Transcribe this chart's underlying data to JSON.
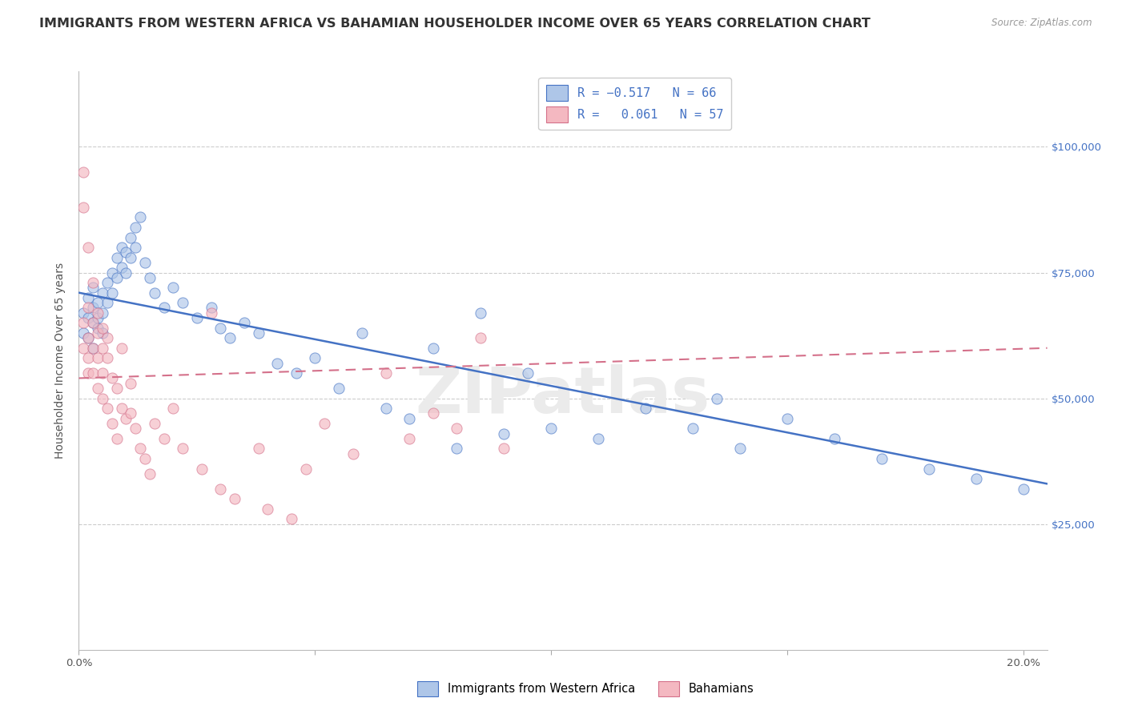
{
  "title": "IMMIGRANTS FROM WESTERN AFRICA VS BAHAMIAN HOUSEHOLDER INCOME OVER 65 YEARS CORRELATION CHART",
  "source": "Source: ZipAtlas.com",
  "ylabel": "Householder Income Over 65 years",
  "right_ytick_labels": [
    "$25,000",
    "$50,000",
    "$75,000",
    "$100,000"
  ],
  "right_ytick_values": [
    25000,
    50000,
    75000,
    100000
  ],
  "ylim": [
    0,
    115000
  ],
  "xlim": [
    0.0,
    0.205
  ],
  "legend_label1": "Immigrants from Western Africa",
  "legend_label2": "Bahamians",
  "blue_scatter_x": [
    0.001,
    0.001,
    0.002,
    0.002,
    0.002,
    0.003,
    0.003,
    0.003,
    0.003,
    0.004,
    0.004,
    0.004,
    0.005,
    0.005,
    0.005,
    0.006,
    0.006,
    0.007,
    0.007,
    0.008,
    0.008,
    0.009,
    0.009,
    0.01,
    0.01,
    0.011,
    0.011,
    0.012,
    0.012,
    0.013,
    0.014,
    0.015,
    0.016,
    0.018,
    0.02,
    0.022,
    0.025,
    0.028,
    0.03,
    0.032,
    0.035,
    0.038,
    0.042,
    0.046,
    0.05,
    0.055,
    0.06,
    0.065,
    0.07,
    0.075,
    0.08,
    0.09,
    0.095,
    0.1,
    0.11,
    0.12,
    0.13,
    0.14,
    0.15,
    0.16,
    0.17,
    0.18,
    0.19,
    0.2,
    0.135,
    0.085
  ],
  "blue_scatter_y": [
    67000,
    63000,
    70000,
    66000,
    62000,
    68000,
    65000,
    72000,
    60000,
    66000,
    64000,
    69000,
    71000,
    67000,
    63000,
    73000,
    69000,
    75000,
    71000,
    78000,
    74000,
    80000,
    76000,
    79000,
    75000,
    82000,
    78000,
    84000,
    80000,
    86000,
    77000,
    74000,
    71000,
    68000,
    72000,
    69000,
    66000,
    68000,
    64000,
    62000,
    65000,
    63000,
    57000,
    55000,
    58000,
    52000,
    63000,
    48000,
    46000,
    60000,
    40000,
    43000,
    55000,
    44000,
    42000,
    48000,
    44000,
    40000,
    46000,
    42000,
    38000,
    36000,
    34000,
    32000,
    50000,
    67000
  ],
  "pink_scatter_x": [
    0.001,
    0.001,
    0.001,
    0.001,
    0.002,
    0.002,
    0.002,
    0.002,
    0.002,
    0.003,
    0.003,
    0.003,
    0.003,
    0.004,
    0.004,
    0.004,
    0.004,
    0.005,
    0.005,
    0.005,
    0.005,
    0.006,
    0.006,
    0.006,
    0.007,
    0.007,
    0.008,
    0.008,
    0.009,
    0.009,
    0.01,
    0.011,
    0.011,
    0.012,
    0.013,
    0.014,
    0.015,
    0.016,
    0.018,
    0.02,
    0.022,
    0.026,
    0.028,
    0.03,
    0.033,
    0.038,
    0.04,
    0.045,
    0.048,
    0.052,
    0.058,
    0.065,
    0.07,
    0.075,
    0.08,
    0.085,
    0.09
  ],
  "pink_scatter_y": [
    95000,
    88000,
    65000,
    60000,
    80000,
    68000,
    62000,
    58000,
    55000,
    73000,
    65000,
    60000,
    55000,
    67000,
    63000,
    58000,
    52000,
    64000,
    60000,
    55000,
    50000,
    62000,
    58000,
    48000,
    54000,
    45000,
    52000,
    42000,
    60000,
    48000,
    46000,
    53000,
    47000,
    44000,
    40000,
    38000,
    35000,
    45000,
    42000,
    48000,
    40000,
    36000,
    67000,
    32000,
    30000,
    40000,
    28000,
    26000,
    36000,
    45000,
    39000,
    55000,
    42000,
    47000,
    44000,
    62000,
    40000
  ],
  "blue_line_x": [
    0.0,
    0.205
  ],
  "blue_line_y": [
    71000,
    33000
  ],
  "pink_line_x": [
    0.0,
    0.205
  ],
  "pink_line_y": [
    54000,
    60000
  ],
  "scatter_size": 90,
  "scatter_alpha": 0.65,
  "blue_color": "#aec6e8",
  "pink_color": "#f4b8c1",
  "blue_line_color": "#4472c4",
  "pink_line_color": "#d4708a",
  "grid_color": "#cccccc",
  "background_color": "#ffffff",
  "title_fontsize": 11.5,
  "axis_label_fontsize": 10,
  "tick_fontsize": 9.5,
  "right_tick_color": "#4472c4",
  "xtick_positions": [
    0.0,
    0.05,
    0.1,
    0.15,
    0.2
  ],
  "xtick_labels_show": [
    "0.0%",
    "",
    "",
    "",
    "20.0%"
  ]
}
